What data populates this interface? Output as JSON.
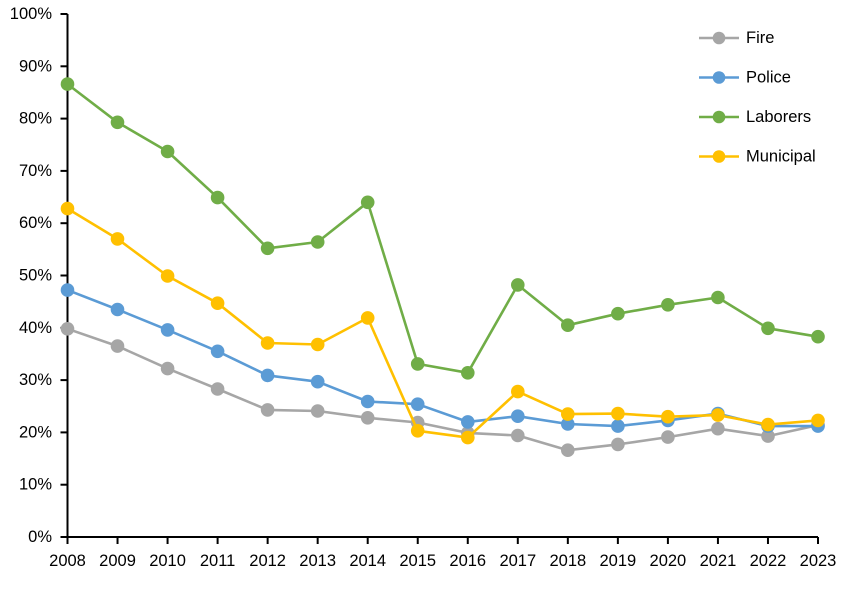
{
  "chart_data": {
    "type": "line",
    "title": "",
    "xlabel": "",
    "ylabel": "",
    "grid": false,
    "legend_position": "top-right-inside",
    "axis_color": "#000000",
    "background_color": "#ffffff",
    "ylim": [
      0,
      100
    ],
    "ytick_step": 10,
    "ytick_labels": [
      "0%",
      "10%",
      "20%",
      "30%",
      "40%",
      "50%",
      "60%",
      "70%",
      "80%",
      "90%",
      "100%"
    ],
    "categories": [
      "2008",
      "2009",
      "2010",
      "2011",
      "2012",
      "2013",
      "2014",
      "2015",
      "2016",
      "2017",
      "2018",
      "2019",
      "2020",
      "2021",
      "2022",
      "2023"
    ],
    "series": [
      {
        "name": "Fire",
        "color": "#A6A6A6",
        "marker": "circle",
        "values": [
          39.8,
          36.5,
          32.2,
          28.3,
          24.3,
          24.1,
          22.8,
          21.9,
          19.9,
          19.4,
          16.6,
          17.7,
          19.1,
          20.7,
          19.3,
          21.4
        ]
      },
      {
        "name": "Police",
        "color": "#5B9BD5",
        "marker": "circle",
        "values": [
          47.2,
          43.5,
          39.6,
          35.5,
          30.9,
          29.7,
          25.9,
          25.4,
          22.0,
          23.1,
          21.6,
          21.2,
          22.3,
          23.6,
          21.2,
          21.2
        ]
      },
      {
        "name": "Laborers",
        "color": "#70AD47",
        "marker": "circle",
        "values": [
          86.6,
          79.3,
          73.7,
          64.9,
          55.2,
          56.4,
          64.0,
          33.1,
          31.4,
          48.2,
          40.5,
          42.7,
          44.4,
          45.8,
          39.9,
          38.3
        ]
      },
      {
        "name": "Municipal",
        "color": "#FFC000",
        "marker": "circle",
        "values": [
          62.8,
          57.0,
          49.9,
          44.7,
          37.1,
          36.8,
          41.9,
          20.3,
          19.0,
          27.8,
          23.5,
          23.6,
          23.0,
          23.3,
          21.5,
          22.3
        ]
      }
    ]
  }
}
